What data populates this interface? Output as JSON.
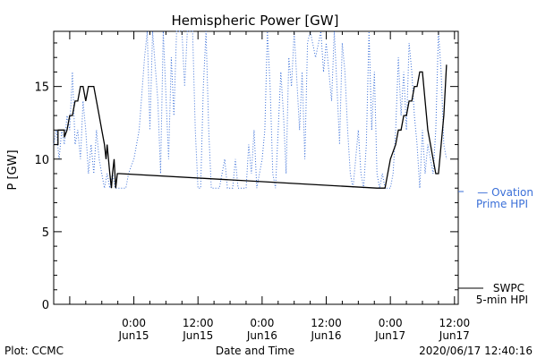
{
  "chart_data": {
    "type": "line",
    "title": "Hemispheric Power [GW]",
    "ylabel": "P [GW]",
    "xlabel": "Date and Time",
    "ylim": [
      0,
      18.8
    ],
    "xlim": [
      -15,
      60.7
    ],
    "y_ticks": [
      "0",
      "5",
      "10",
      "15"
    ],
    "x_ticks": [
      {
        "label1": "0:00",
        "label2": "Jun15",
        "hours": 0
      },
      {
        "label1": "12:00",
        "label2": "Jun15",
        "hours": 12
      },
      {
        "label1": "0:00",
        "label2": "Jun16",
        "hours": 24
      },
      {
        "label1": "12:00",
        "label2": "Jun16",
        "hours": 36
      },
      {
        "label1": "0:00",
        "label2": "Jun17",
        "hours": 48
      },
      {
        "label1": "12:00",
        "label2": "Jun17",
        "hours": 60
      }
    ],
    "series": [
      {
        "name": "SWPC 5-min HPI",
        "color": "#000000",
        "style": "solid",
        "points": [
          [
            -15,
            11
          ],
          [
            -14.2,
            11
          ],
          [
            -14.2,
            12
          ],
          [
            -13,
            12
          ],
          [
            -13,
            11.5
          ],
          [
            -12.5,
            12
          ],
          [
            -12,
            13
          ],
          [
            -11.5,
            13
          ],
          [
            -11,
            14
          ],
          [
            -10.5,
            14
          ],
          [
            -10,
            15
          ],
          [
            -9.5,
            15
          ],
          [
            -9,
            14
          ],
          [
            -8.5,
            15
          ],
          [
            -7.5,
            15
          ],
          [
            -7,
            14
          ],
          [
            -6.5,
            13
          ],
          [
            -6,
            12
          ],
          [
            -5.5,
            11
          ],
          [
            -5.2,
            10
          ],
          [
            -5,
            11
          ],
          [
            -4.5,
            9
          ],
          [
            -4.2,
            8
          ],
          [
            -4,
            9
          ],
          [
            -3.7,
            10
          ],
          [
            -3.4,
            8
          ],
          [
            -3.1,
            9
          ],
          [
            -2.6,
            9
          ],
          [
            45.5,
            8
          ],
          [
            47,
            8
          ],
          [
            47.5,
            9
          ],
          [
            48,
            10
          ],
          [
            49,
            11
          ],
          [
            49.5,
            12
          ],
          [
            50,
            12
          ],
          [
            50.5,
            13
          ],
          [
            51,
            13
          ],
          [
            51.5,
            14
          ],
          [
            52,
            14
          ],
          [
            52.5,
            15
          ],
          [
            53,
            15
          ],
          [
            53.5,
            16
          ],
          [
            54,
            16
          ],
          [
            54.5,
            14
          ],
          [
            55,
            12
          ],
          [
            55.5,
            11
          ],
          [
            56,
            10
          ],
          [
            56.5,
            9
          ],
          [
            57,
            9
          ],
          [
            57.5,
            11
          ],
          [
            58,
            13
          ],
          [
            58.5,
            16.5
          ]
        ]
      },
      {
        "name": "Ovation Prime HPI",
        "color": "#3a6fd8",
        "style": "dotted",
        "points": [
          [
            -15,
            11
          ],
          [
            -14.5,
            12
          ],
          [
            -14,
            10
          ],
          [
            -13.5,
            12
          ],
          [
            -13,
            11
          ],
          [
            -12.5,
            13
          ],
          [
            -12,
            12
          ],
          [
            -11.5,
            16
          ],
          [
            -11,
            11
          ],
          [
            -10.5,
            12
          ],
          [
            -10,
            10
          ],
          [
            -9.5,
            14
          ],
          [
            -9,
            12
          ],
          [
            -8.5,
            9
          ],
          [
            -8,
            11
          ],
          [
            -7.5,
            9
          ],
          [
            -7,
            12
          ],
          [
            -6.5,
            10
          ],
          [
            -6,
            9
          ],
          [
            -5.5,
            8
          ],
          [
            -5,
            9
          ],
          [
            -4.5,
            8
          ],
          [
            -4,
            9
          ],
          [
            -3.5,
            8
          ],
          [
            -3,
            8
          ],
          [
            -1.5,
            8
          ],
          [
            -1,
            9
          ],
          [
            0,
            10
          ],
          [
            1,
            12
          ],
          [
            2,
            17
          ],
          [
            2.5,
            18.8
          ],
          [
            3,
            12
          ],
          [
            3.5,
            18.8
          ],
          [
            4.5,
            14
          ],
          [
            5,
            9
          ],
          [
            5.5,
            18.8
          ],
          [
            6.5,
            10
          ],
          [
            7,
            17
          ],
          [
            7.5,
            13
          ],
          [
            8,
            18.8
          ],
          [
            9,
            18.8
          ],
          [
            9.5,
            15
          ],
          [
            10,
            18.8
          ],
          [
            11,
            18.8
          ],
          [
            11.5,
            12
          ],
          [
            12,
            8
          ],
          [
            12.5,
            8
          ],
          [
            13,
            15
          ],
          [
            13.5,
            18.8
          ],
          [
            14,
            12
          ],
          [
            14.5,
            8
          ],
          [
            16,
            8
          ],
          [
            17,
            10
          ],
          [
            17.5,
            8
          ],
          [
            18.5,
            8
          ],
          [
            19,
            10
          ],
          [
            19.5,
            8
          ],
          [
            21,
            8
          ],
          [
            21.5,
            11
          ],
          [
            22,
            9
          ],
          [
            22.5,
            12
          ],
          [
            23,
            8
          ],
          [
            24,
            10
          ],
          [
            24.5,
            12
          ],
          [
            25,
            18.8
          ],
          [
            25.5,
            15
          ],
          [
            26,
            9
          ],
          [
            26.5,
            8
          ],
          [
            27,
            12
          ],
          [
            27.5,
            16
          ],
          [
            28,
            13
          ],
          [
            28.5,
            9
          ],
          [
            29,
            17
          ],
          [
            29.5,
            15
          ],
          [
            30,
            18.8
          ],
          [
            31,
            12
          ],
          [
            31.5,
            16
          ],
          [
            32,
            10
          ],
          [
            32.5,
            18
          ],
          [
            33,
            18.8
          ],
          [
            34,
            17
          ],
          [
            35,
            18.8
          ],
          [
            35.5,
            16
          ],
          [
            36,
            18
          ],
          [
            37,
            14
          ],
          [
            37.5,
            18.8
          ],
          [
            38,
            15
          ],
          [
            38.5,
            11
          ],
          [
            39,
            18
          ],
          [
            39.5,
            16
          ],
          [
            40,
            12
          ],
          [
            40.5,
            9
          ],
          [
            41,
            8
          ],
          [
            41.5,
            10
          ],
          [
            42,
            12
          ],
          [
            42.5,
            9
          ],
          [
            43,
            8
          ],
          [
            43.5,
            11
          ],
          [
            44,
            18.8
          ],
          [
            44.5,
            12
          ],
          [
            45,
            16
          ],
          [
            45.5,
            9
          ],
          [
            46,
            8
          ],
          [
            46.5,
            9
          ],
          [
            47,
            8
          ],
          [
            48,
            8
          ],
          [
            48.5,
            9
          ],
          [
            49,
            12
          ],
          [
            49.5,
            17
          ],
          [
            50,
            13
          ],
          [
            50.5,
            16
          ],
          [
            51,
            12
          ],
          [
            51.5,
            18
          ],
          [
            52,
            16
          ],
          [
            52.5,
            13
          ],
          [
            53,
            11
          ],
          [
            53.5,
            8
          ],
          [
            54,
            12
          ],
          [
            54.5,
            9
          ],
          [
            55,
            11
          ],
          [
            55.5,
            10
          ],
          [
            56,
            9
          ],
          [
            56.5,
            12
          ],
          [
            57,
            18.8
          ],
          [
            57.5,
            16
          ],
          [
            58,
            11
          ],
          [
            58.5,
            10
          ]
        ]
      }
    ],
    "legend": {
      "ovation_line1": "— Ovation",
      "ovation_line2": "Prime HPI",
      "swpc_line1": "SWPC",
      "swpc_line2": "5-min HPI"
    },
    "footer": {
      "left": "Plot: CCMC",
      "center": "Date and Time",
      "right": "2020/06/17 12:40:16"
    }
  }
}
